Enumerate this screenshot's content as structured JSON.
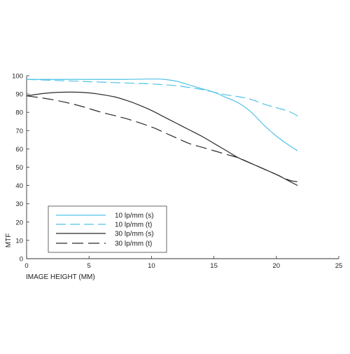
{
  "colors": {
    "cyan": "#4fc3e8",
    "dark": "#2b2b2b",
    "axis": "#333333"
  },
  "chart_data": {
    "type": "line",
    "title": "",
    "xlabel": "IMAGE HEIGHT (MM)",
    "ylabel": "MTF",
    "xlim": [
      0,
      25
    ],
    "ylim": [
      0,
      100
    ],
    "xticks": [
      0,
      5,
      10,
      15,
      20,
      25
    ],
    "yticks": [
      0,
      10,
      20,
      30,
      40,
      50,
      60,
      70,
      80,
      90,
      100
    ],
    "grid": false,
    "legend_position": "lower-left",
    "series": [
      {
        "name": "10 lp/mm (s)",
        "color": "#4fc3e8",
        "dash": "solid",
        "x": [
          0,
          2,
          4,
          6,
          8,
          10,
          11,
          12,
          13,
          14,
          15,
          16,
          17,
          18,
          19,
          20,
          21,
          21.7
        ],
        "y": [
          98,
          98,
          98,
          98,
          98,
          98.2,
          98,
          97,
          95,
          93,
          91,
          88,
          85,
          80,
          73,
          67,
          62,
          59
        ]
      },
      {
        "name": "10 lp/mm (t)",
        "color": "#4fc3e8",
        "dash": "dashed",
        "x": [
          0,
          2,
          4,
          6,
          8,
          10,
          12,
          14,
          15,
          16,
          17,
          18,
          19,
          20,
          21,
          21.7
        ],
        "y": [
          98,
          97.5,
          97,
          96.5,
          96,
          95.5,
          94.5,
          92.5,
          91,
          89.5,
          88.5,
          87,
          84.5,
          82.5,
          80.5,
          78
        ]
      },
      {
        "name": "30 lp/mm (s)",
        "color": "#2b2b2b",
        "dash": "solid",
        "x": [
          0,
          1,
          2,
          3,
          4,
          5,
          6,
          7,
          8,
          9,
          10,
          11,
          12,
          13,
          14,
          15,
          16,
          17,
          18,
          19,
          20,
          21,
          21.7
        ],
        "y": [
          89,
          90,
          90.7,
          91,
          91,
          90.6,
          89.7,
          88.5,
          86.5,
          84,
          81,
          77.5,
          74,
          70.5,
          67,
          63,
          59,
          55,
          52,
          49,
          46,
          42.5,
          40
        ]
      },
      {
        "name": "30 lp/mm (t)",
        "color": "#2b2b2b",
        "dash": "longdash",
        "x": [
          0,
          2,
          4,
          6,
          8,
          10,
          11,
          12,
          13,
          14,
          15,
          16,
          17,
          18,
          19,
          20,
          21,
          21.7
        ],
        "y": [
          89,
          87,
          84,
          80,
          76.5,
          72,
          69,
          66,
          63,
          61,
          59,
          57,
          55,
          52,
          49,
          46,
          43,
          42
        ]
      }
    ]
  }
}
